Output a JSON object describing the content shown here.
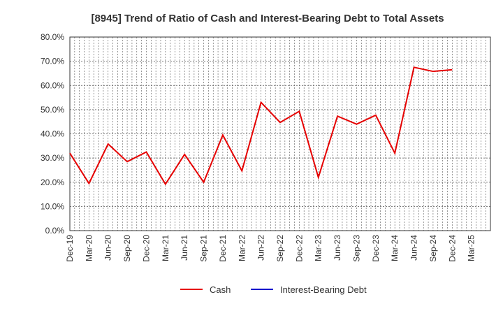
{
  "chart_data": {
    "type": "line",
    "title": "[8945]  Trend of Ratio of Cash and Interest-Bearing Debt to Total Assets",
    "xlabel": "",
    "ylabel": "",
    "ylim": [
      0,
      80
    ],
    "y_ticks": [
      "0.0%",
      "10.0%",
      "20.0%",
      "30.0%",
      "40.0%",
      "50.0%",
      "60.0%",
      "70.0%",
      "80.0%"
    ],
    "x_ticks": [
      "Dec-19",
      "Mar-20",
      "Jun-20",
      "Sep-20",
      "Dec-20",
      "Mar-21",
      "Jun-21",
      "Sep-21",
      "Dec-21",
      "Mar-22",
      "Jun-22",
      "Sep-22",
      "Dec-22",
      "Mar-23",
      "Jun-23",
      "Sep-23",
      "Dec-23",
      "Mar-24",
      "Jun-24",
      "Sep-24",
      "Dec-24",
      "Mar-25"
    ],
    "grid": true,
    "legend_position": "bottom",
    "series": [
      {
        "name": "Cash",
        "color": "#e60000",
        "values": [
          32.0,
          19.5,
          35.8,
          28.5,
          32.5,
          19.2,
          31.5,
          20.0,
          39.5,
          24.7,
          53.0,
          44.7,
          49.3,
          22.0,
          47.3,
          44.0,
          47.7,
          32.0,
          67.5,
          65.8,
          66.5,
          null
        ]
      },
      {
        "name": "Interest-Bearing Debt",
        "color": "#0000cc",
        "values": []
      }
    ]
  }
}
